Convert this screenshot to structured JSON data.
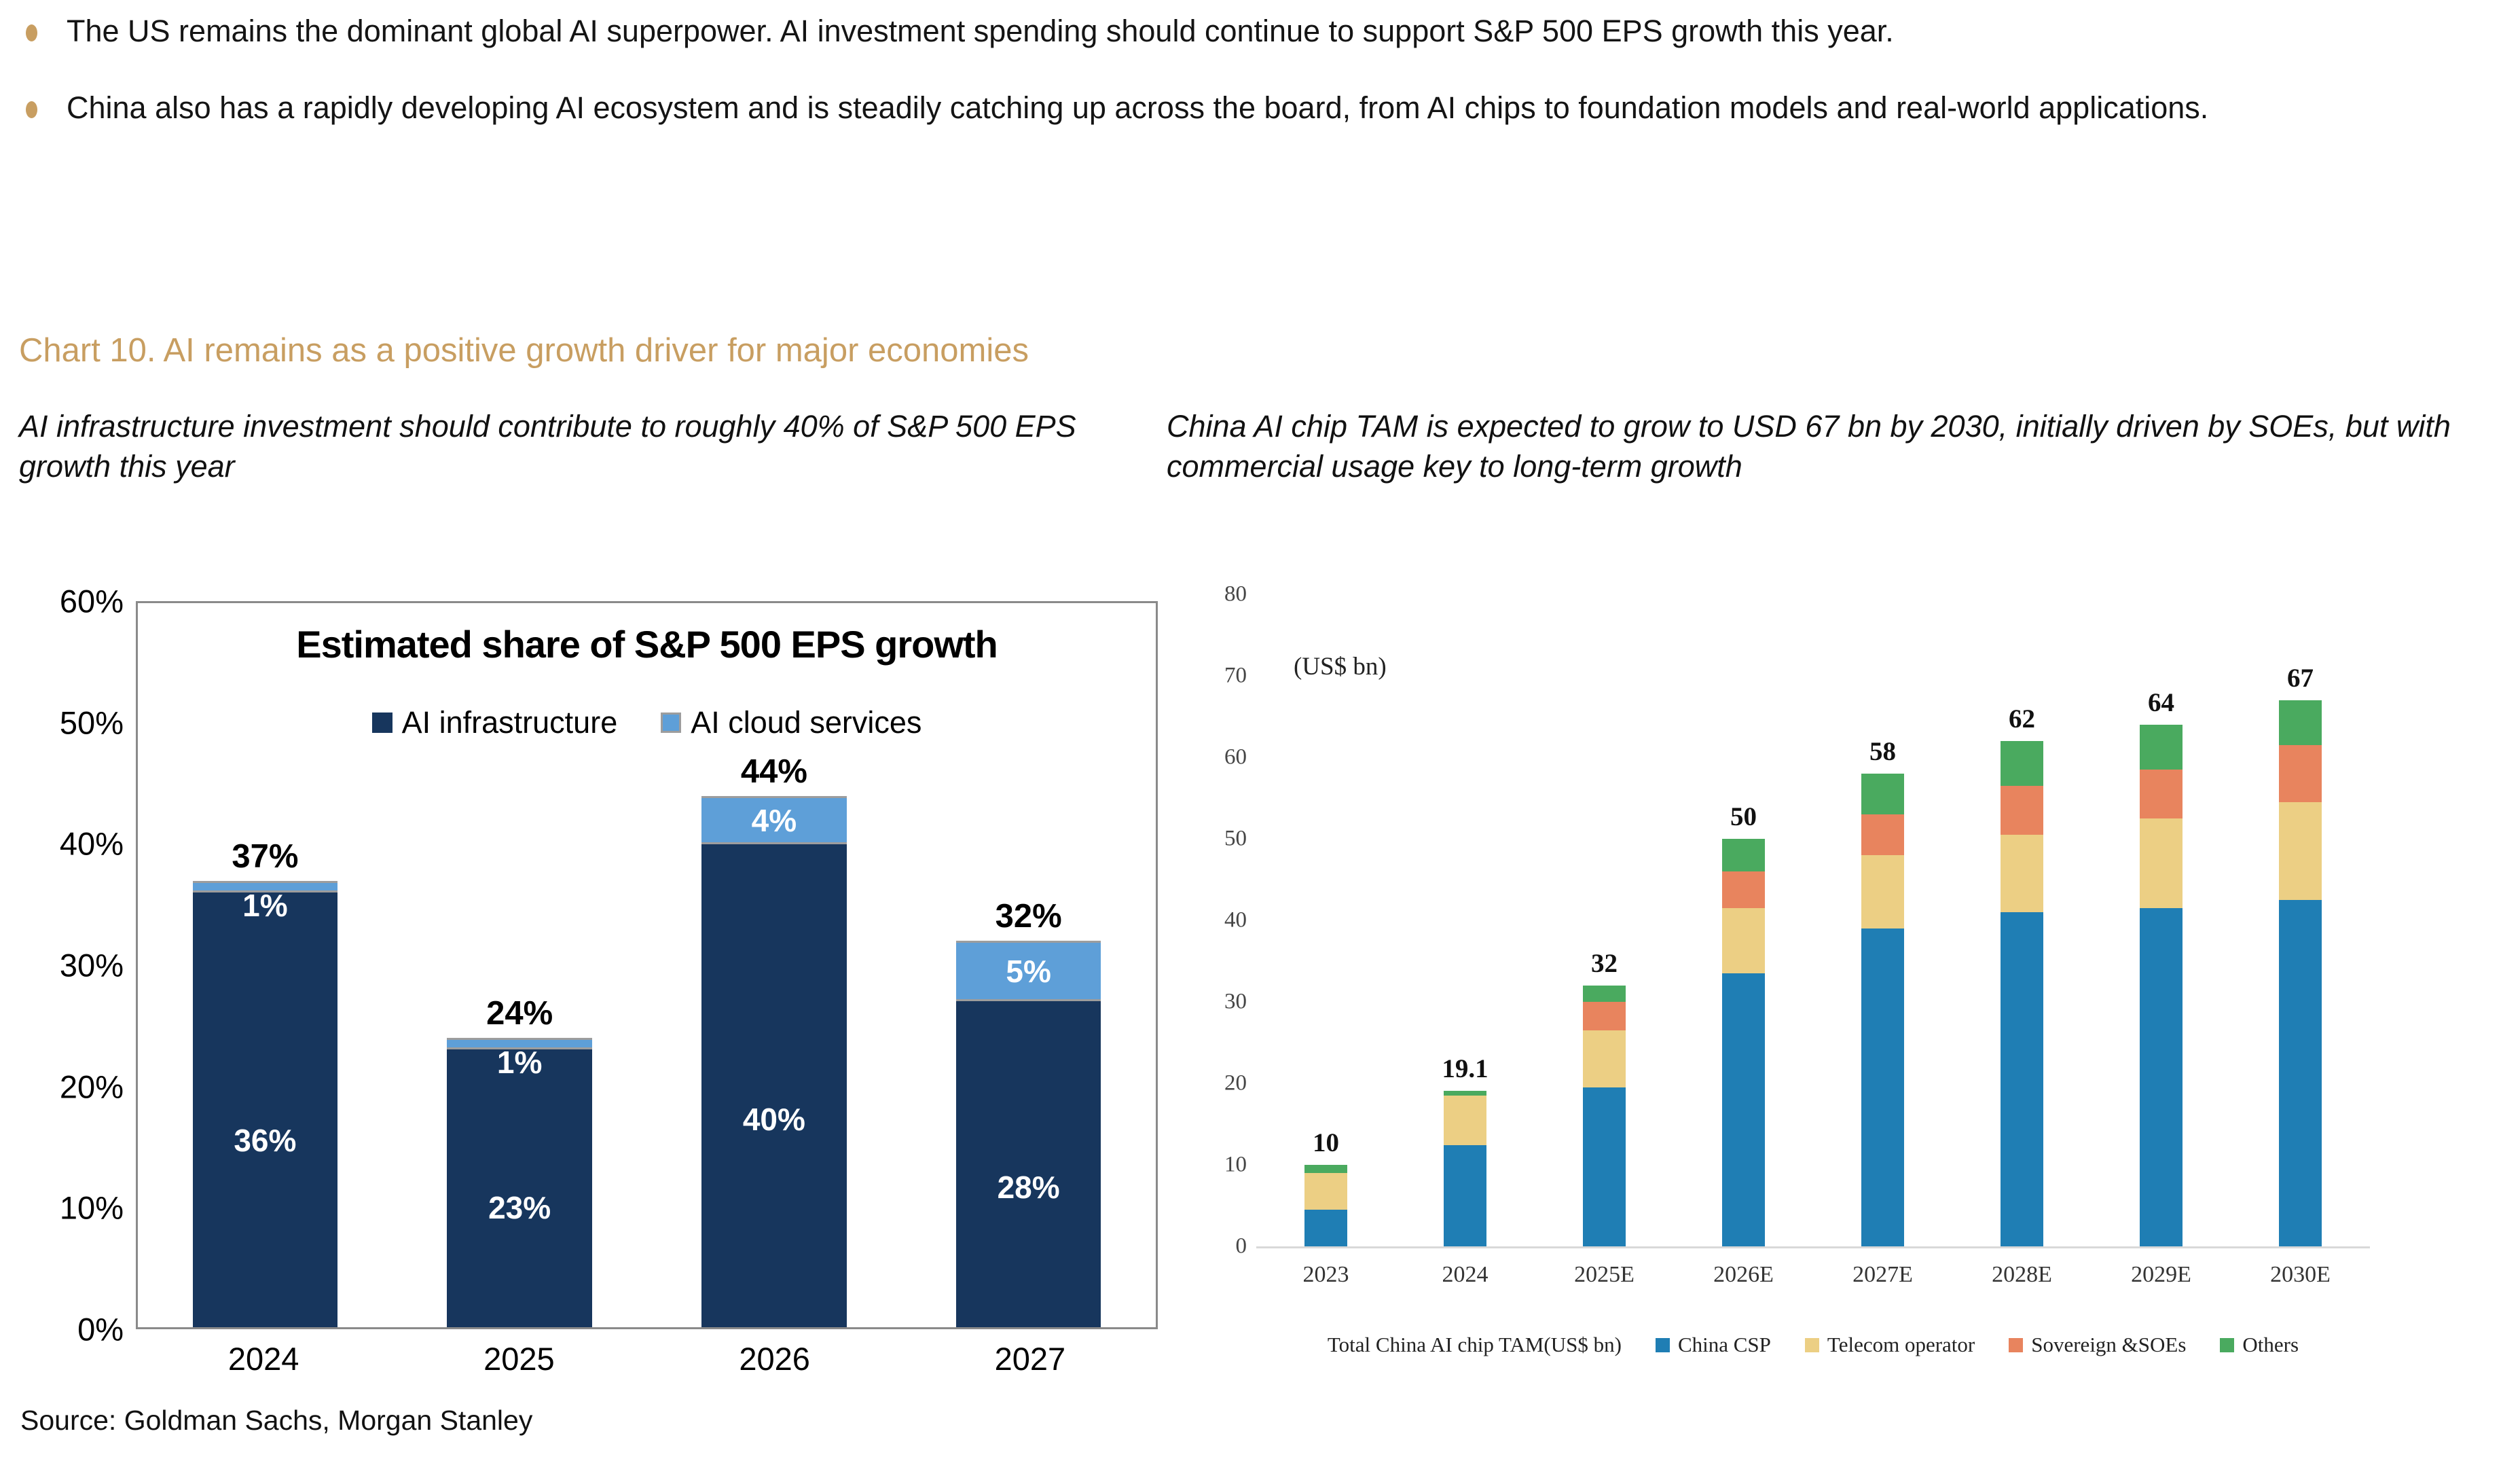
{
  "colors": {
    "accent_gold": "#c89e61",
    "text": "#141414",
    "navy": "#17365d",
    "light_blue": "#5e9fd8",
    "csp_blue": "#1f7eb4",
    "telecom_yellow": "#eccf84",
    "soe_orange": "#e8845e",
    "others_green": "#4aaa5f",
    "plot_border_gray": "#8a8a8a",
    "baseline_gray": "#d9d9d9"
  },
  "bullets": [
    "The US remains the dominant global AI superpower. AI investment spending should continue to support S&P 500 EPS growth this year.",
    "China also has a rapidly developing AI ecosystem and is steadily catching up across the board, from AI chips to foundation models and real-world applications."
  ],
  "heading": "Chart 10. AI remains as a positive growth driver for major economies",
  "source": "Source: Goldman Sachs, Morgan Stanley",
  "chart_data": [
    {
      "id": "sp500-eps-growth-share",
      "type": "bar",
      "stacked": true,
      "title": "Estimated share of S&P 500 EPS growth",
      "subtitle": "AI infrastructure investment should contribute to roughly 40% of S&P 500 EPS growth this year",
      "categories": [
        "2024",
        "2025",
        "2026",
        "2027"
      ],
      "series": [
        {
          "name": "AI infrastructure",
          "color": "#17365d",
          "values": [
            36,
            23,
            40,
            28
          ],
          "labels": [
            "36%",
            "23%",
            "40%",
            "28%"
          ]
        },
        {
          "name": "AI cloud services",
          "color": "#5e9fd8",
          "values": [
            1,
            1,
            4,
            5
          ],
          "labels": [
            "1%",
            "1%",
            "4%",
            "5%"
          ]
        }
      ],
      "totals": [
        37,
        24,
        44,
        32
      ],
      "total_labels": [
        "37%",
        "24%",
        "44%",
        "32%"
      ],
      "xlabel": "",
      "ylabel": "",
      "ylim": [
        0,
        60
      ],
      "yticks": [
        "0%",
        "10%",
        "20%",
        "30%",
        "40%",
        "50%",
        "60%"
      ],
      "grid": false,
      "legend_position": "top-center-inside"
    },
    {
      "id": "china-ai-chip-tam",
      "type": "bar",
      "stacked": true,
      "title": "",
      "subtitle": "China AI chip TAM is expected to grow to USD 67 bn by 2030, initially driven by SOEs, but with commercial usage key to long-term growth",
      "unit_label": "(US$ bn)",
      "categories": [
        "2023",
        "2024",
        "2025E",
        "2026E",
        "2027E",
        "2028E",
        "2029E",
        "2030E"
      ],
      "series": [
        {
          "name": "China CSP",
          "color": "#1f7eb4",
          "values": [
            4.5,
            12.4,
            19.5,
            33.5,
            39,
            41,
            41.5,
            42.5
          ]
        },
        {
          "name": "Telecom operator",
          "color": "#eccf84",
          "values": [
            4.5,
            6.1,
            7,
            8,
            9,
            9.5,
            11,
            12
          ]
        },
        {
          "name": "Sovereign &SOEs",
          "color": "#e8845e",
          "values": [
            0,
            0,
            3.5,
            4.5,
            5,
            6,
            6,
            7
          ]
        },
        {
          "name": "Others",
          "color": "#4aaa5f",
          "values": [
            1,
            0.6,
            2,
            4,
            5,
            5.5,
            5.5,
            5.5
          ]
        }
      ],
      "totals": [
        10,
        19.1,
        32,
        50,
        58,
        62,
        64,
        67
      ],
      "total_labels": [
        "10",
        "19.1",
        "32",
        "50",
        "58",
        "62",
        "64",
        "67"
      ],
      "legend_prefix": "Total China AI chip TAM(US$ bn)",
      "xlabel": "",
      "ylabel": "",
      "ylim": [
        0,
        80
      ],
      "yticks": [
        0,
        10,
        20,
        30,
        40,
        50,
        60,
        70,
        80
      ],
      "grid": false,
      "legend_position": "bottom"
    }
  ]
}
